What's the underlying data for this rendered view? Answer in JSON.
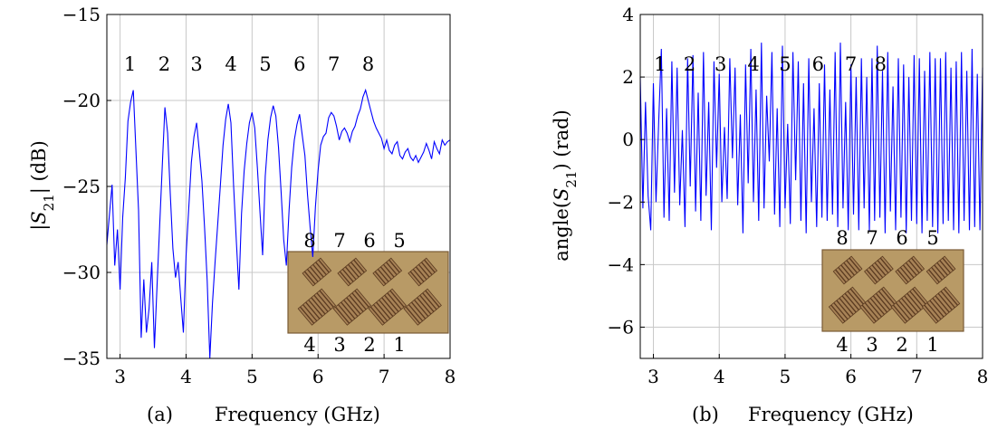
{
  "colors": {
    "series": "#0000ff",
    "grid": "#c8c8c8",
    "axis": "#000000",
    "board": "#b89a66",
    "board_dark": "#7a5a35",
    "strip": "#5a3a20"
  },
  "chart_data": [
    {
      "type": "line",
      "caption_label": "(a)",
      "xlabel": "Frequency (GHz)",
      "ylabel": "|S21| (dB)",
      "xlim": [
        2.8,
        8.0
      ],
      "ylim": [
        -35,
        -15
      ],
      "xticks": [
        3,
        4,
        5,
        6,
        7,
        8
      ],
      "yticks": [
        -35,
        -30,
        -25,
        -20,
        -15
      ],
      "grid": true,
      "annotations": [
        "1",
        "2",
        "3",
        "4",
        "5",
        "6",
        "7",
        "8"
      ],
      "annotation_x": [
        3.15,
        3.67,
        4.16,
        4.68,
        5.2,
        5.72,
        6.24,
        6.76
      ],
      "inset_top_labels": [
        "8",
        "7",
        "6",
        "5"
      ],
      "inset_bottom_labels": [
        "4",
        "3",
        "2",
        "1"
      ],
      "x": [
        2.8,
        2.84,
        2.88,
        2.92,
        2.96,
        3.0,
        3.04,
        3.08,
        3.12,
        3.16,
        3.2,
        3.24,
        3.28,
        3.32,
        3.36,
        3.4,
        3.44,
        3.48,
        3.52,
        3.56,
        3.6,
        3.64,
        3.68,
        3.72,
        3.76,
        3.8,
        3.84,
        3.88,
        3.92,
        3.96,
        4.0,
        4.04,
        4.08,
        4.12,
        4.16,
        4.2,
        4.24,
        4.28,
        4.32,
        4.36,
        4.4,
        4.44,
        4.48,
        4.52,
        4.56,
        4.6,
        4.64,
        4.68,
        4.72,
        4.76,
        4.8,
        4.84,
        4.88,
        4.92,
        4.96,
        5.0,
        5.04,
        5.08,
        5.12,
        5.16,
        5.2,
        5.24,
        5.28,
        5.32,
        5.36,
        5.4,
        5.44,
        5.48,
        5.52,
        5.56,
        5.6,
        5.64,
        5.68,
        5.72,
        5.76,
        5.8,
        5.84,
        5.88,
        5.92,
        5.96,
        6.0,
        6.04,
        6.08,
        6.12,
        6.16,
        6.2,
        6.24,
        6.28,
        6.32,
        6.36,
        6.4,
        6.44,
        6.48,
        6.52,
        6.56,
        6.6,
        6.64,
        6.68,
        6.72,
        6.76,
        6.8,
        6.84,
        6.88,
        6.92,
        6.96,
        7.0,
        7.04,
        7.08,
        7.12,
        7.16,
        7.2,
        7.24,
        7.28,
        7.32,
        7.36,
        7.4,
        7.44,
        7.48,
        7.52,
        7.56,
        7.6,
        7.64,
        7.68,
        7.72,
        7.76,
        7.8,
        7.84,
        7.88,
        7.92,
        7.96,
        8.0
      ],
      "values": [
        -28.4,
        -26.6,
        -24.9,
        -29.6,
        -27.5,
        -31.0,
        -26.8,
        -24.5,
        -21.2,
        -20.1,
        -19.4,
        -22.9,
        -26.4,
        -33.8,
        -30.4,
        -33.5,
        -32.1,
        -29.4,
        -34.4,
        -30.8,
        -27.3,
        -23.8,
        -20.4,
        -21.9,
        -25.4,
        -28.6,
        -30.3,
        -29.4,
        -31.5,
        -33.5,
        -29.0,
        -26.3,
        -23.6,
        -22.1,
        -21.3,
        -22.9,
        -24.7,
        -27.4,
        -30.5,
        -35.0,
        -31.8,
        -29.4,
        -27.2,
        -24.9,
        -22.6,
        -21.1,
        -20.2,
        -21.3,
        -24.9,
        -28.1,
        -31.0,
        -26.6,
        -24.1,
        -22.5,
        -21.3,
        -20.7,
        -21.6,
        -23.9,
        -26.5,
        -29.0,
        -24.4,
        -22.3,
        -21.0,
        -20.3,
        -20.9,
        -22.7,
        -25.3,
        -28.1,
        -29.6,
        -26.4,
        -23.9,
        -22.3,
        -21.4,
        -20.8,
        -22.0,
        -23.2,
        -25.5,
        -27.4,
        -29.1,
        -26.2,
        -24.1,
        -22.6,
        -22.1,
        -21.9,
        -21.0,
        -20.7,
        -20.9,
        -21.5,
        -22.3,
        -21.8,
        -21.6,
        -21.9,
        -22.4,
        -21.8,
        -21.5,
        -20.9,
        -20.5,
        -19.8,
        -19.4,
        -20.0,
        -20.6,
        -21.2,
        -21.6,
        -21.9,
        -22.2,
        -22.8,
        -22.3,
        -22.9,
        -23.1,
        -22.6,
        -22.4,
        -23.2,
        -23.4,
        -23.0,
        -22.8,
        -23.3,
        -23.5,
        -23.2,
        -23.6,
        -23.3,
        -23.0,
        -22.5,
        -22.9,
        -23.4,
        -22.4,
        -22.8,
        -23.1,
        -22.3,
        -22.6,
        -22.4,
        -22.3
      ]
    },
    {
      "type": "line",
      "caption_label": "(b)",
      "xlabel": "Frequency (GHz)",
      "ylabel": "angle(S21) (rad)",
      "xlim": [
        2.8,
        8.0
      ],
      "ylim": [
        -7,
        4
      ],
      "xticks": [
        3,
        4,
        5,
        6,
        7,
        8
      ],
      "yticks": [
        -6,
        -4,
        -2,
        0,
        2,
        4
      ],
      "grid": true,
      "annotations": [
        "1",
        "2",
        "3",
        "4",
        "5",
        "6",
        "7",
        "8"
      ],
      "annotation_x": [
        3.1,
        3.55,
        4.02,
        4.52,
        5.0,
        5.5,
        6.0,
        6.45
      ],
      "inset_top_labels": [
        "8",
        "7",
        "6",
        "5"
      ],
      "inset_bottom_labels": [
        "4",
        "3",
        "2",
        "1"
      ],
      "x": [
        2.8,
        2.84,
        2.88,
        2.92,
        2.96,
        3.0,
        3.04,
        3.08,
        3.12,
        3.16,
        3.2,
        3.24,
        3.28,
        3.32,
        3.36,
        3.4,
        3.44,
        3.48,
        3.52,
        3.56,
        3.6,
        3.64,
        3.68,
        3.72,
        3.76,
        3.8,
        3.84,
        3.88,
        3.92,
        3.96,
        4.0,
        4.04,
        4.08,
        4.12,
        4.16,
        4.2,
        4.24,
        4.28,
        4.32,
        4.36,
        4.4,
        4.44,
        4.48,
        4.52,
        4.56,
        4.6,
        4.64,
        4.68,
        4.72,
        4.76,
        4.8,
        4.84,
        4.88,
        4.92,
        4.96,
        5.0,
        5.04,
        5.08,
        5.12,
        5.16,
        5.2,
        5.24,
        5.28,
        5.32,
        5.36,
        5.4,
        5.44,
        5.48,
        5.52,
        5.56,
        5.6,
        5.64,
        5.68,
        5.72,
        5.76,
        5.8,
        5.84,
        5.88,
        5.92,
        5.96,
        6.0,
        6.04,
        6.08,
        6.12,
        6.16,
        6.2,
        6.24,
        6.28,
        6.32,
        6.36,
        6.4,
        6.44,
        6.48,
        6.52,
        6.56,
        6.6,
        6.64,
        6.68,
        6.72,
        6.76,
        6.8,
        6.84,
        6.88,
        6.92,
        6.96,
        7.0,
        7.04,
        7.08,
        7.12,
        7.16,
        7.2,
        7.24,
        7.28,
        7.32,
        7.36,
        7.4,
        7.44,
        7.48,
        7.52,
        7.56,
        7.6,
        7.64,
        7.68,
        7.72,
        7.76,
        7.8,
        7.84,
        7.88,
        7.92,
        7.96,
        8.0
      ],
      "values": [
        2.0,
        -2.2,
        1.2,
        -1.8,
        -2.9,
        1.8,
        -2.0,
        0.6,
        2.9,
        -2.5,
        1.0,
        -2.6,
        2.5,
        -1.7,
        2.3,
        -2.1,
        0.3,
        -2.8,
        2.6,
        -1.5,
        2.7,
        -2.3,
        1.5,
        -2.6,
        2.8,
        -1.8,
        1.2,
        -2.9,
        2.5,
        -0.9,
        2.1,
        -2.0,
        0.4,
        -1.9,
        2.6,
        -0.6,
        2.3,
        -2.1,
        0.8,
        -3.0,
        2.4,
        -1.4,
        2.9,
        -2.0,
        1.6,
        -2.6,
        3.1,
        -2.2,
        1.4,
        -0.7,
        2.8,
        -2.4,
        1.0,
        -2.8,
        3.0,
        -2.2,
        0.5,
        -2.7,
        2.8,
        -1.3,
        2.5,
        -2.6,
        1.8,
        -3.0,
        2.6,
        -2.0,
        1.0,
        -2.8,
        1.8,
        -2.5,
        2.4,
        -2.6,
        1.6,
        -2.4,
        2.8,
        -2.8,
        3.1,
        -2.2,
        1.2,
        -2.9,
        2.4,
        -2.4,
        2.0,
        -2.9,
        2.6,
        -2.2,
        2.0,
        -2.9,
        2.6,
        -2.6,
        3.0,
        -2.5,
        2.2,
        -3.0,
        2.8,
        -2.3,
        1.7,
        -2.9,
        2.6,
        -2.5,
        2.4,
        -3.0,
        2.0,
        -2.6,
        2.7,
        -2.7,
        2.6,
        -3.0,
        2.2,
        -2.6,
        2.8,
        -2.8,
        2.6,
        -3.0,
        2.6,
        -2.7,
        2.8,
        -2.6,
        2.3,
        -2.9,
        2.5,
        -3.0,
        2.8,
        -2.6,
        2.2,
        -2.9,
        2.9,
        -2.8,
        2.1,
        -2.9,
        2.3
      ]
    }
  ]
}
